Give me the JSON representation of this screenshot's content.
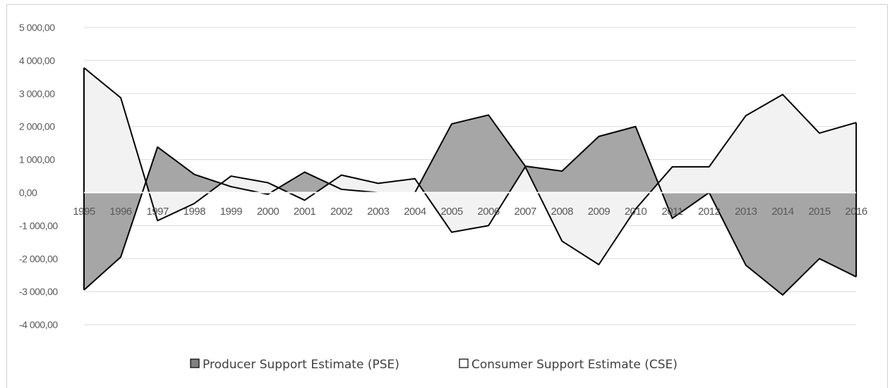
{
  "chart_data": {
    "type": "area",
    "categories": [
      "1995",
      "1996",
      "1997",
      "1998",
      "1999",
      "2000",
      "2001",
      "2002",
      "2003",
      "2004",
      "2005",
      "2006",
      "2007",
      "2008",
      "2009",
      "2010",
      "2011",
      "2012",
      "2013",
      "2014",
      "2015",
      "2016"
    ],
    "series": [
      {
        "name": "Producer Support Estimate (PSE)",
        "color": "#a6a6a6",
        "values": [
          -2950,
          -1950,
          1380,
          550,
          180,
          -50,
          620,
          100,
          0,
          0,
          2080,
          2350,
          800,
          650,
          1700,
          2000,
          -780,
          0,
          -2200,
          -3100,
          -2000,
          -2550
        ]
      },
      {
        "name": "Consumer Support Estimate (CSE)",
        "color": "#f2f2f2",
        "values": [
          3780,
          2870,
          -850,
          -330,
          500,
          300,
          -230,
          530,
          280,
          420,
          -1200,
          -1000,
          780,
          -1470,
          -2180,
          -500,
          780,
          780,
          2330,
          2970,
          1800,
          2120
        ]
      }
    ],
    "ylim": [
      -4000,
      5000
    ],
    "yticks": [
      "5 000,00",
      "4 000,00",
      "3 000,00",
      "2 000,00",
      "1 000,00",
      "0,00",
      "-1 000,00",
      "-2 000,00",
      "-3 000,00",
      "-4 000,00"
    ],
    "ytick_values": [
      5000,
      4000,
      3000,
      2000,
      1000,
      0,
      -1000,
      -2000,
      -3000,
      -4000
    ],
    "grid": true,
    "legend": "bottom"
  }
}
